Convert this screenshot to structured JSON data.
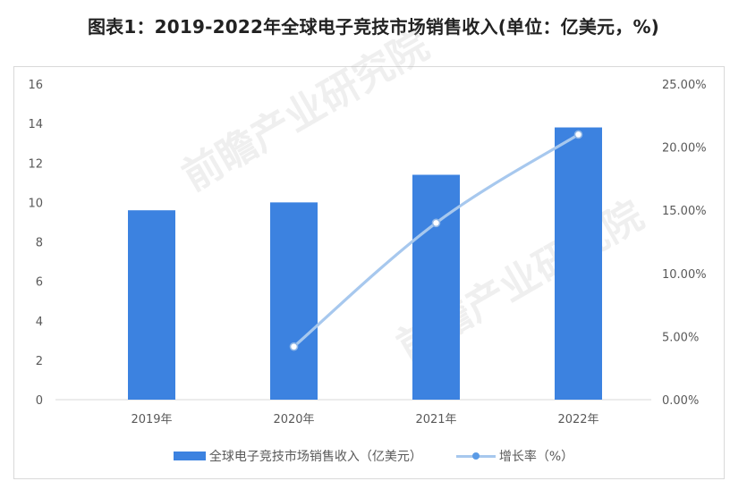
{
  "title": "图表1：2019-2022年全球电子竞技市场销售收入(单位：亿美元，%)",
  "left_axis": {
    "ticks": [
      "0",
      "2",
      "4",
      "6",
      "8",
      "10",
      "12",
      "14",
      "16"
    ],
    "min": 0,
    "max": 16
  },
  "right_axis": {
    "ticks": [
      "0.00%",
      "5.00%",
      "10.00%",
      "15.00%",
      "20.00%",
      "25.00%"
    ],
    "min": 0,
    "max": 25
  },
  "x_axis": {
    "categories": [
      "2019年",
      "2020年",
      "2021年",
      "2022年"
    ]
  },
  "legend": {
    "bar_label": "全球电子竞技市场销售收入（亿美元）",
    "line_label": "增长率（%）"
  },
  "colors": {
    "bar": "#3c82e0",
    "line": "#a7c8ee",
    "marker_fill": "#ffffff",
    "grid": "#d9d9d9"
  },
  "watermark": "前瞻产业研究院",
  "chart_data": {
    "type": "bar",
    "title": "图表1：2019-2022年全球电子竞技市场销售收入(单位：亿美元，%)",
    "categories": [
      "2019年",
      "2020年",
      "2021年",
      "2022年"
    ],
    "series": [
      {
        "name": "全球电子竞技市场销售收入（亿美元）",
        "type": "bar",
        "axis": "left",
        "values": [
          9.6,
          10.0,
          11.4,
          13.8
        ]
      },
      {
        "name": "增长率（%）",
        "type": "line",
        "axis": "right",
        "values": [
          null,
          4.2,
          14.0,
          21.0
        ]
      }
    ],
    "xlabel": "",
    "ylabel": "亿美元",
    "ylabel_right": "%",
    "ylim": [
      0,
      16
    ],
    "ylim_right": [
      0,
      25
    ],
    "grid": false,
    "legend_position": "bottom"
  }
}
